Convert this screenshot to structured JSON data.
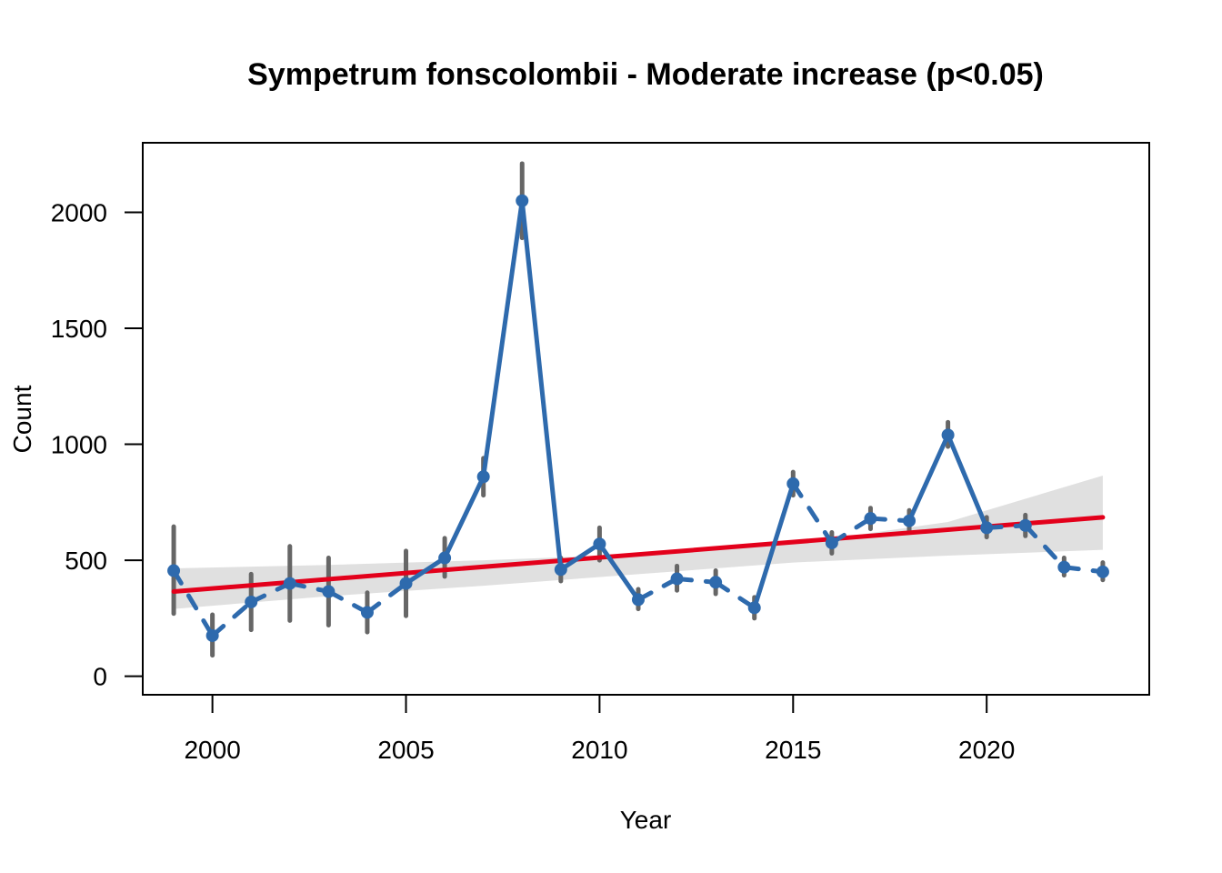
{
  "chart_data": {
    "type": "line",
    "title": "Sympetrum fonscolombii - Moderate increase (p<0.05)",
    "xlabel": "Year",
    "ylabel": "Count",
    "xlim": [
      1998.2,
      2024.2
    ],
    "ylim": [
      -80,
      2300
    ],
    "x_ticks": [
      2000,
      2005,
      2010,
      2015,
      2020
    ],
    "y_ticks": [
      0,
      500,
      1000,
      1500,
      2000
    ],
    "x_tick_labels": [
      "2000",
      "2005",
      "2010",
      "2015",
      "2020"
    ],
    "y_tick_labels": [
      "0",
      "500",
      "1000",
      "1500",
      "2000"
    ],
    "colors": {
      "series": "#2e6aad",
      "error_bar": "#666666",
      "trend": "#e3001b",
      "ribbon": "#e0e0e0"
    },
    "series": [
      {
        "years": [
          1999,
          2000,
          2001,
          2002,
          2003,
          2004,
          2005,
          2006,
          2007,
          2008,
          2009,
          2010,
          2011,
          2012,
          2013,
          2014,
          2015,
          2016,
          2017,
          2018,
          2019,
          2020,
          2021,
          2022,
          2023
        ],
        "values": [
          455,
          175,
          320,
          400,
          365,
          275,
          400,
          510,
          860,
          2050,
          460,
          570,
          330,
          420,
          405,
          295,
          830,
          575,
          680,
          670,
          1040,
          640,
          650,
          470,
          450
        ],
        "lower": [
          270,
          90,
          200,
          240,
          220,
          190,
          260,
          430,
          780,
          1890,
          410,
          500,
          290,
          370,
          355,
          250,
          780,
          530,
          635,
          625,
          990,
          600,
          605,
          435,
          415
        ],
        "upper": [
          645,
          265,
          440,
          560,
          510,
          360,
          540,
          595,
          940,
          2210,
          510,
          640,
          375,
          475,
          455,
          340,
          880,
          620,
          725,
          715,
          1095,
          685,
          695,
          510,
          490
        ],
        "segments_style": [
          "dashed",
          "dashed",
          "dashed",
          "dashed",
          "dashed",
          "dashed",
          "solid",
          "solid",
          "solid",
          "solid",
          "solid",
          "solid",
          "dashed",
          "dashed",
          "dashed",
          "solid",
          "dashed",
          "dashed",
          "dashed",
          "solid",
          "solid",
          "dashed",
          "dashed",
          "dashed"
        ]
      }
    ],
    "trend": {
      "x": [
        1999,
        2023
      ],
      "y": [
        365,
        685
      ]
    },
    "ribbon": {
      "x": [
        1999,
        2003,
        2007,
        2011,
        2015,
        2019,
        2023
      ],
      "lower": [
        290,
        345,
        390,
        440,
        490,
        520,
        545
      ],
      "upper": [
        465,
        480,
        500,
        525,
        570,
        665,
        865
      ]
    }
  }
}
